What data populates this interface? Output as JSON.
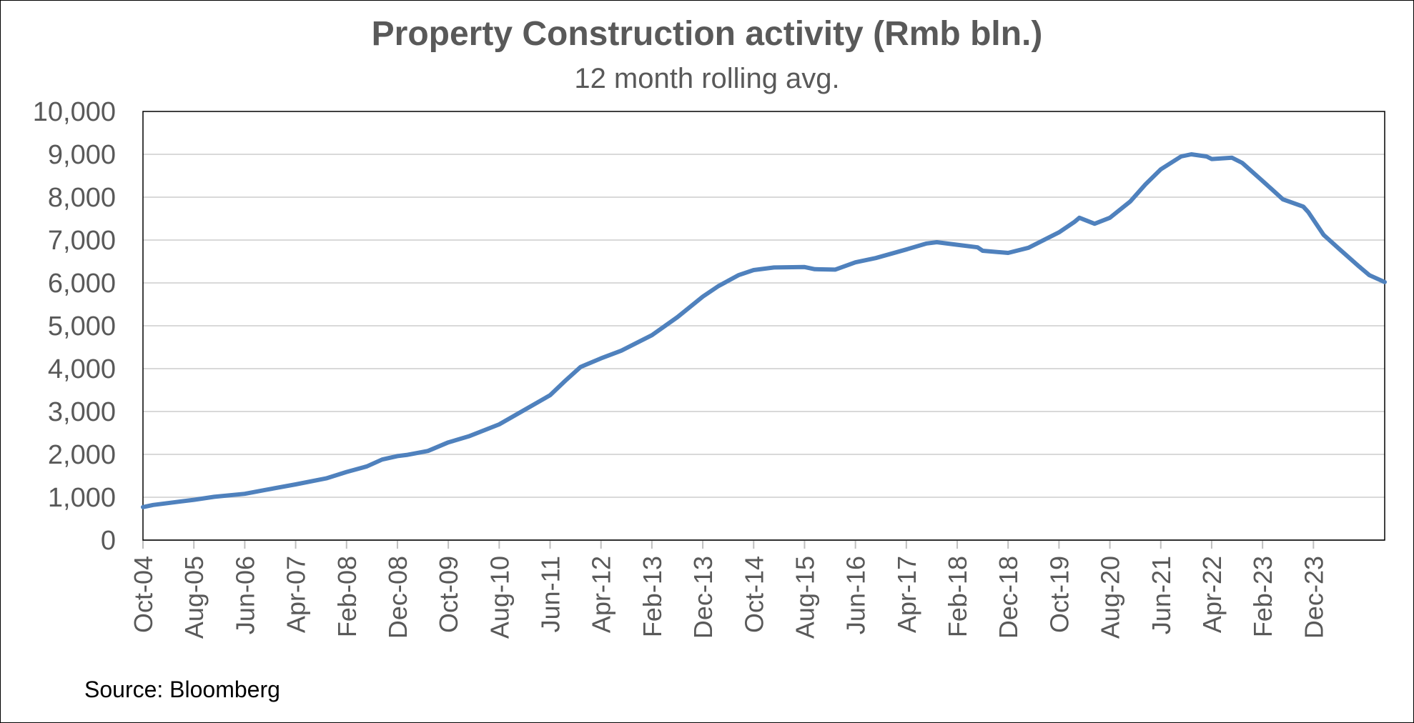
{
  "chart_data": {
    "type": "line",
    "title": "Property Construction activity (Rmb bln.)",
    "subtitle": "12 month rolling avg.",
    "source": "Source: Bloomberg",
    "ylim": [
      0,
      10000
    ],
    "yticks": [
      "0",
      "1,000",
      "2,000",
      "3,000",
      "4,000",
      "5,000",
      "6,000",
      "7,000",
      "8,000",
      "9,000",
      "10,000"
    ],
    "xticks": [
      "Oct-04",
      "Aug-05",
      "Jun-06",
      "Apr-07",
      "Feb-08",
      "Dec-08",
      "Oct-09",
      "Aug-10",
      "Jun-11",
      "Apr-12",
      "Feb-13",
      "Dec-13",
      "Oct-14",
      "Aug-15",
      "Jun-16",
      "Apr-17",
      "Feb-18",
      "Dec-18",
      "Oct-19",
      "Aug-20",
      "Jun-21",
      "Apr-22",
      "Feb-23",
      "Dec-23"
    ],
    "grid": true,
    "line_color": "#4F81BD",
    "series": [
      {
        "points": [
          [
            "Oct-04",
            770
          ],
          [
            "Dec-04",
            820
          ],
          [
            "Apr-05",
            880
          ],
          [
            "Aug-05",
            940
          ],
          [
            "Dec-05",
            1010
          ],
          [
            "Jun-06",
            1080
          ],
          [
            "Oct-06",
            1170
          ],
          [
            "Apr-07",
            1300
          ],
          [
            "Oct-07",
            1440
          ],
          [
            "Feb-08",
            1590
          ],
          [
            "Jun-08",
            1720
          ],
          [
            "Sep-08",
            1880
          ],
          [
            "Dec-08",
            1960
          ],
          [
            "Feb-09",
            1990
          ],
          [
            "Jun-09",
            2080
          ],
          [
            "Oct-09",
            2280
          ],
          [
            "Feb-10",
            2420
          ],
          [
            "Aug-10",
            2700
          ],
          [
            "Jan-11",
            3040
          ],
          [
            "Jun-11",
            3380
          ],
          [
            "Sep-11",
            3720
          ],
          [
            "Dec-11",
            4040
          ],
          [
            "Apr-12",
            4240
          ],
          [
            "Aug-12",
            4420
          ],
          [
            "Feb-13",
            4780
          ],
          [
            "Jul-13",
            5200
          ],
          [
            "Dec-13",
            5680
          ],
          [
            "Mar-14",
            5920
          ],
          [
            "Jul-14",
            6180
          ],
          [
            "Oct-14",
            6300
          ],
          [
            "Feb-15",
            6360
          ],
          [
            "Aug-15",
            6370
          ],
          [
            "Oct-15",
            6320
          ],
          [
            "Feb-16",
            6310
          ],
          [
            "Jun-16",
            6480
          ],
          [
            "Oct-16",
            6580
          ],
          [
            "Apr-17",
            6780
          ],
          [
            "Aug-17",
            6920
          ],
          [
            "Oct-17",
            6950
          ],
          [
            "Feb-18",
            6890
          ],
          [
            "Jun-18",
            6830
          ],
          [
            "Jul-18",
            6750
          ],
          [
            "Dec-18",
            6700
          ],
          [
            "Apr-19",
            6820
          ],
          [
            "Oct-19",
            7180
          ],
          [
            "Jan-20",
            7420
          ],
          [
            "Feb-20",
            7520
          ],
          [
            "May-20",
            7380
          ],
          [
            "Aug-20",
            7520
          ],
          [
            "Dec-20",
            7900
          ],
          [
            "Mar-21",
            8300
          ],
          [
            "Jun-21",
            8650
          ],
          [
            "Aug-21",
            8800
          ],
          [
            "Oct-21",
            8950
          ],
          [
            "Dec-21",
            9000
          ],
          [
            "Mar-22",
            8950
          ],
          [
            "Apr-22",
            8890
          ],
          [
            "Aug-22",
            8920
          ],
          [
            "Oct-22",
            8800
          ],
          [
            "Feb-23",
            8380
          ],
          [
            "Jun-23",
            7950
          ],
          [
            "Oct-23",
            7780
          ],
          [
            "Nov-23",
            7650
          ],
          [
            "Feb-24",
            7120
          ],
          [
            "May-24",
            6800
          ],
          [
            "Sep-24",
            6380
          ],
          [
            "Nov-24",
            6180
          ],
          [
            "Feb-25",
            6020
          ]
        ]
      }
    ]
  }
}
